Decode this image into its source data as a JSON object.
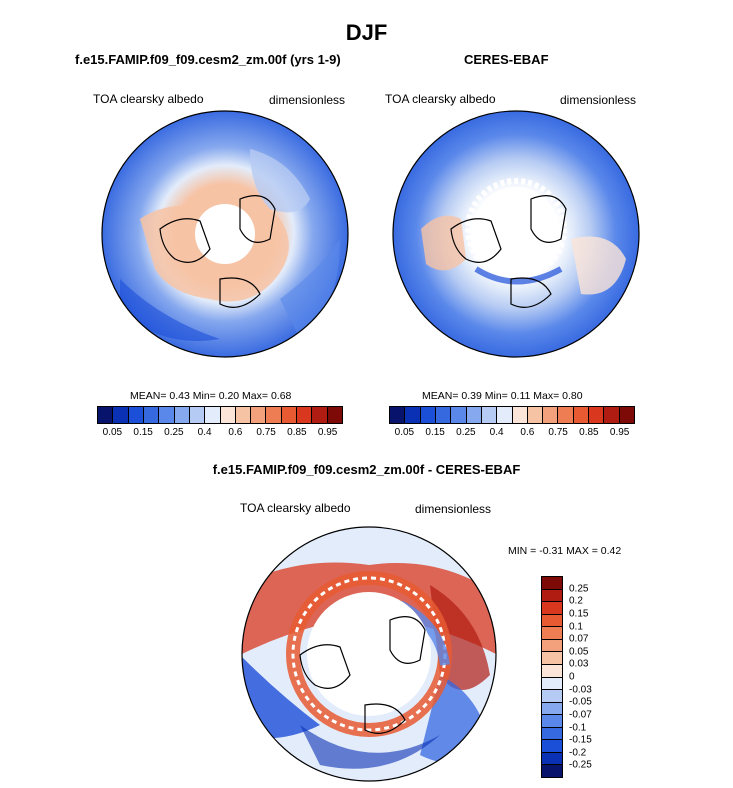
{
  "title": "DJF",
  "panels": [
    {
      "name": "model",
      "title": "f.e15.FAMIP.f09_f09.cesm2_zm.00f (yrs 1-9)",
      "variable": "TOA clearsky albedo",
      "units": "dimensionless",
      "stats": "MEAN=  0.43  Min=  0.20  Max=  0.68"
    },
    {
      "name": "obs",
      "title": "CERES-EBAF",
      "variable": "TOA clearsky albedo",
      "units": "dimensionless",
      "stats": "MEAN=  0.39  Min=  0.11  Max=  0.80"
    },
    {
      "name": "diff",
      "title": "f.e15.FAMIP.f09_f09.cesm2_zm.00f - CERES-EBAF",
      "variable": "TOA clearsky albedo",
      "units": "dimensionless",
      "stats": "MIN =  -0.31 MAX =   0.42"
    }
  ],
  "colorbar_abs": {
    "labels": [
      "0.05",
      "0.15",
      "0.25",
      "0.4",
      "0.6",
      "0.75",
      "0.85",
      "0.95"
    ],
    "colors": [
      "#08136b",
      "#0a30b4",
      "#1c4fd8",
      "#3668e0",
      "#5a88ea",
      "#86a8ee",
      "#b6cbf3",
      "#e3ecfa",
      "#fbe5d8",
      "#f7c3a5",
      "#f3a07c",
      "#ef7d54",
      "#e85a32",
      "#d9381e",
      "#b01c12",
      "#7d0a06"
    ]
  },
  "colorbar_diff": {
    "labels": [
      "0.25",
      "0.2",
      "0.15",
      "0.1",
      "0.07",
      "0.05",
      "0.03",
      "0",
      "-0.03",
      "-0.05",
      "-0.07",
      "-0.1",
      "-0.15",
      "-0.2",
      "-0.25"
    ],
    "colors": [
      "#7d0a06",
      "#b01c12",
      "#d9381e",
      "#e85a32",
      "#ef7d54",
      "#f3a07c",
      "#f7c3a5",
      "#fbe5d8",
      "#e3ecfa",
      "#b6cbf3",
      "#86a8ee",
      "#5a88ea",
      "#3668e0",
      "#1c4fd8",
      "#0a30b4",
      "#08136b"
    ]
  }
}
